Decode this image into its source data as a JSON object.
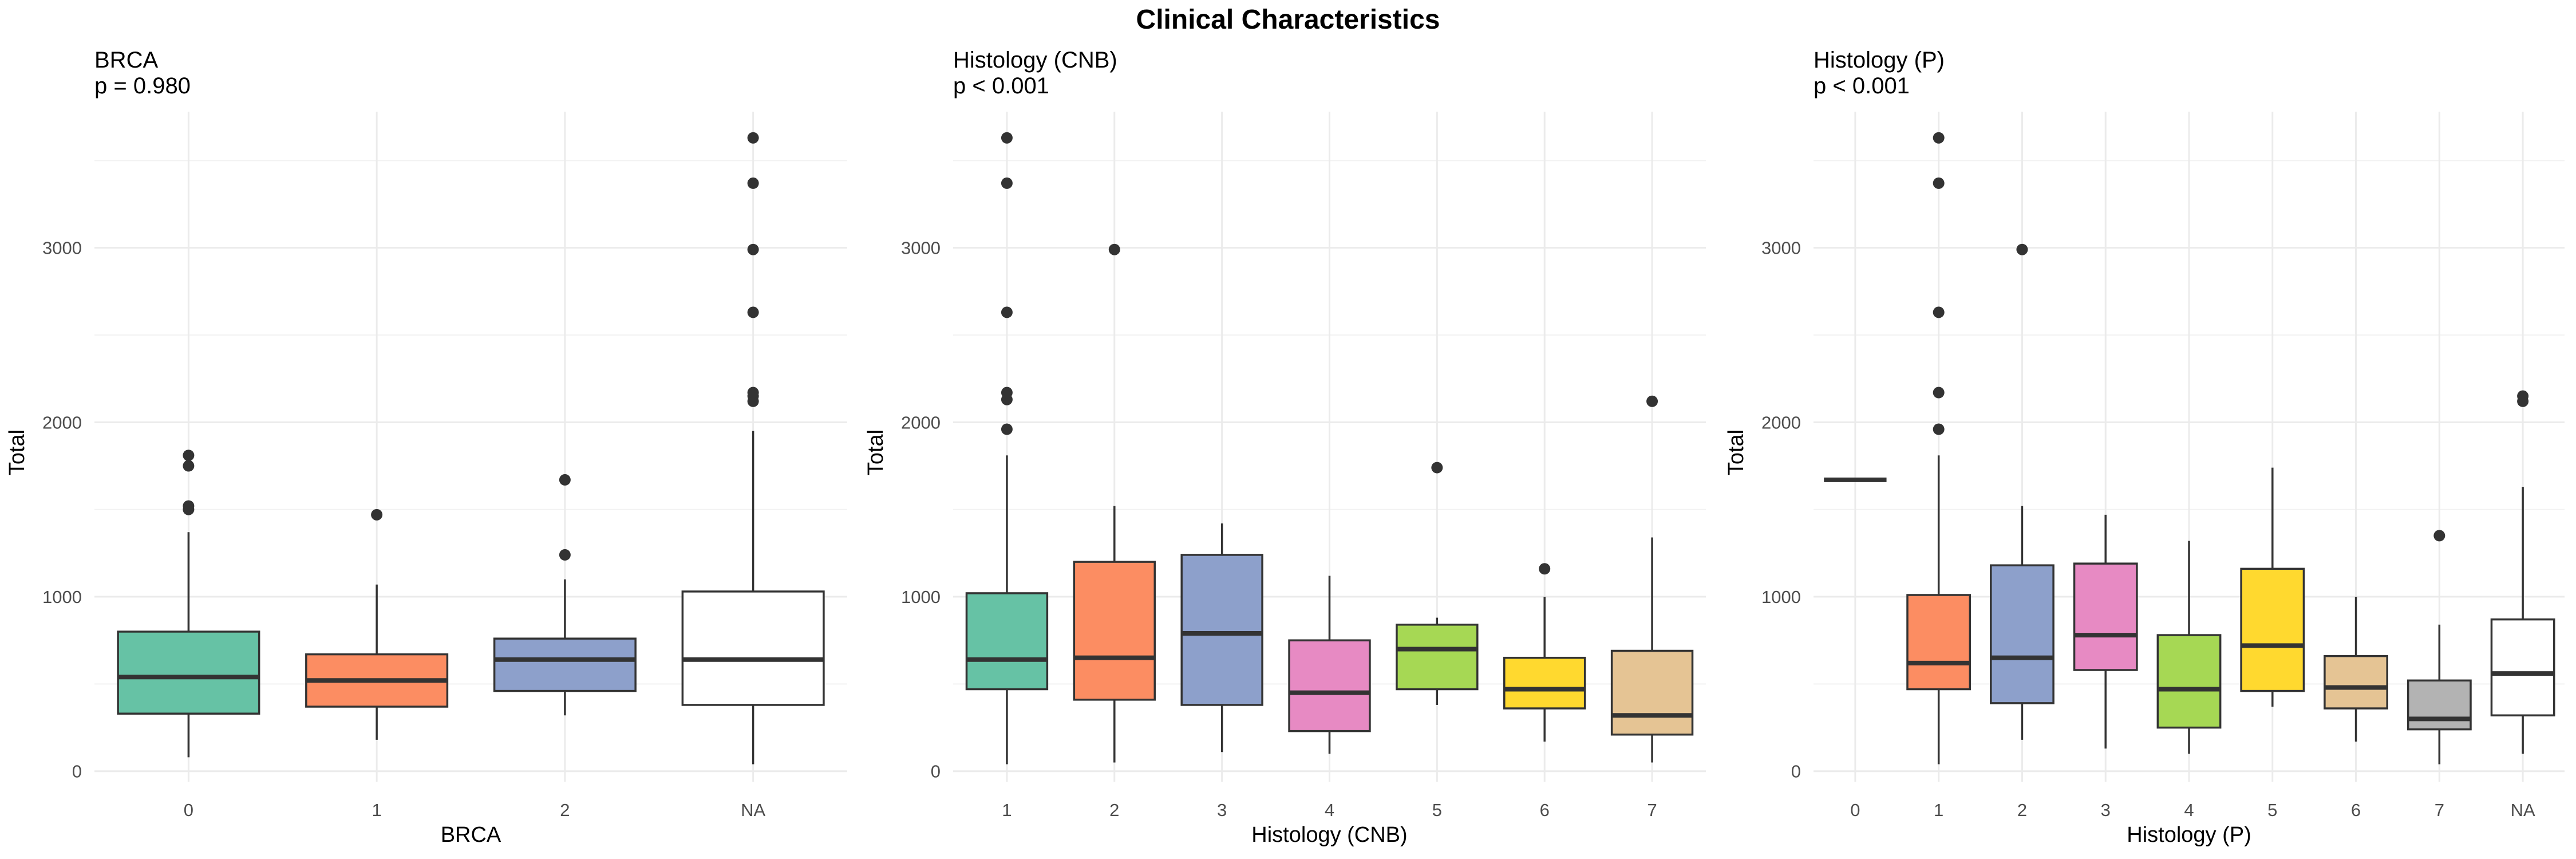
{
  "title": "Clinical Characteristics",
  "chart_data": [
    {
      "type": "boxplot",
      "panel_title": "BRCA",
      "panel_subtitle": "p = 0.980",
      "xlabel": "BRCA",
      "ylabel": "Total",
      "ylim": [
        -60,
        3780
      ],
      "yticks": [
        0,
        1000,
        2000,
        3000
      ],
      "grid": true,
      "categories": [
        {
          "label": "0",
          "color": "#66C2A5",
          "whisker_low": 80,
          "q1": 330,
          "median": 540,
          "q3": 800,
          "whisker_high": 1370,
          "outliers": [
            1500,
            1520,
            1750,
            1810
          ]
        },
        {
          "label": "1",
          "color": "#FC8D62",
          "whisker_low": 180,
          "q1": 370,
          "median": 520,
          "q3": 670,
          "whisker_high": 1070,
          "outliers": [
            1470
          ]
        },
        {
          "label": "2",
          "color": "#8DA0CB",
          "whisker_low": 320,
          "q1": 460,
          "median": 640,
          "q3": 760,
          "whisker_high": 1100,
          "outliers": [
            1240,
            1670
          ]
        },
        {
          "label": "NA",
          "color": "#FFFFFF",
          "whisker_low": 40,
          "q1": 380,
          "median": 640,
          "q3": 1030,
          "whisker_high": 1950,
          "outliers": [
            2120,
            2150,
            2170,
            2630,
            2990,
            3370,
            3630
          ]
        }
      ]
    },
    {
      "type": "boxplot",
      "panel_title": "Histology (CNB)",
      "panel_subtitle": "p < 0.001",
      "xlabel": "Histology (CNB)",
      "ylabel": "Total",
      "ylim": [
        -60,
        3780
      ],
      "yticks": [
        0,
        1000,
        2000,
        3000
      ],
      "grid": true,
      "categories": [
        {
          "label": "1",
          "color": "#66C2A5",
          "whisker_low": 40,
          "q1": 470,
          "median": 640,
          "q3": 1020,
          "whisker_high": 1810,
          "outliers": [
            1960,
            2130,
            2170,
            2630,
            3370,
            3630
          ]
        },
        {
          "label": "2",
          "color": "#FC8D62",
          "whisker_low": 50,
          "q1": 410,
          "median": 650,
          "q3": 1200,
          "whisker_high": 1520,
          "outliers": [
            2990
          ]
        },
        {
          "label": "3",
          "color": "#8DA0CB",
          "whisker_low": 110,
          "q1": 380,
          "median": 790,
          "q3": 1240,
          "whisker_high": 1420,
          "outliers": []
        },
        {
          "label": "4",
          "color": "#E78AC3",
          "whisker_low": 100,
          "q1": 230,
          "median": 450,
          "q3": 750,
          "whisker_high": 1120,
          "outliers": []
        },
        {
          "label": "5",
          "color": "#A6D854",
          "whisker_low": 380,
          "q1": 470,
          "median": 700,
          "q3": 840,
          "whisker_high": 880,
          "outliers": [
            1740
          ]
        },
        {
          "label": "6",
          "color": "#FFD92F",
          "whisker_low": 170,
          "q1": 360,
          "median": 470,
          "q3": 650,
          "whisker_high": 1000,
          "outliers": [
            1160
          ]
        },
        {
          "label": "7",
          "color": "#E5C494",
          "whisker_low": 50,
          "q1": 210,
          "median": 320,
          "q3": 690,
          "whisker_high": 1340,
          "outliers": [
            2120
          ]
        }
      ]
    },
    {
      "type": "boxplot",
      "panel_title": "Histology (P)",
      "panel_subtitle": "p < 0.001",
      "xlabel": "Histology (P)",
      "ylabel": "Total",
      "ylim": [
        -60,
        3780
      ],
      "yticks": [
        0,
        1000,
        2000,
        3000
      ],
      "grid": true,
      "categories": [
        {
          "label": "0",
          "color": "#66C2A5",
          "whisker_low": 1670,
          "q1": 1670,
          "median": 1670,
          "q3": 1670,
          "whisker_high": 1670,
          "outliers": []
        },
        {
          "label": "1",
          "color": "#FC8D62",
          "whisker_low": 40,
          "q1": 470,
          "median": 620,
          "q3": 1010,
          "whisker_high": 1810,
          "outliers": [
            1960,
            2170,
            2630,
            3370,
            3630
          ]
        },
        {
          "label": "2",
          "color": "#8DA0CB",
          "whisker_low": 180,
          "q1": 390,
          "median": 650,
          "q3": 1180,
          "whisker_high": 1520,
          "outliers": [
            2990
          ]
        },
        {
          "label": "3",
          "color": "#E78AC3",
          "whisker_low": 130,
          "q1": 580,
          "median": 780,
          "q3": 1190,
          "whisker_high": 1470,
          "outliers": []
        },
        {
          "label": "4",
          "color": "#A6D854",
          "whisker_low": 100,
          "q1": 250,
          "median": 470,
          "q3": 780,
          "whisker_high": 1320,
          "outliers": []
        },
        {
          "label": "5",
          "color": "#FFD92F",
          "whisker_low": 370,
          "q1": 460,
          "median": 720,
          "q3": 1160,
          "whisker_high": 1740,
          "outliers": []
        },
        {
          "label": "6",
          "color": "#E5C494",
          "whisker_low": 170,
          "q1": 360,
          "median": 480,
          "q3": 660,
          "whisker_high": 1000,
          "outliers": []
        },
        {
          "label": "7",
          "color": "#B3B3B3",
          "whisker_low": 40,
          "q1": 240,
          "median": 300,
          "q3": 520,
          "whisker_high": 840,
          "outliers": [
            1350
          ]
        },
        {
          "label": "NA",
          "color": "#FFFFFF",
          "whisker_low": 100,
          "q1": 320,
          "median": 560,
          "q3": 870,
          "whisker_high": 1630,
          "outliers": [
            2120,
            2150
          ]
        }
      ]
    }
  ]
}
